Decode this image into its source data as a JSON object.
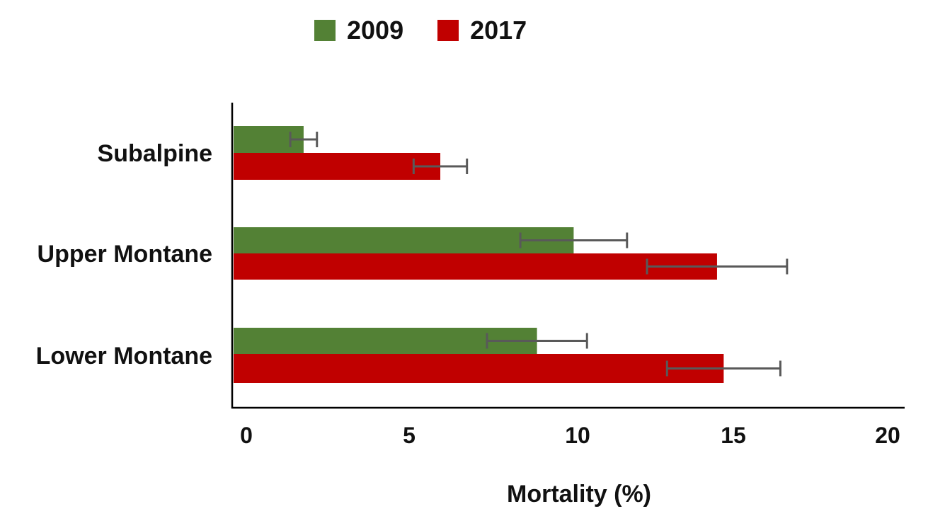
{
  "chart_data": {
    "type": "bar",
    "orientation": "horizontal",
    "categories": [
      "Subalpine",
      "Upper Montane",
      "Lower Montane"
    ],
    "series": [
      {
        "name": "2009",
        "color": "#538135",
        "values": [
          2.1,
          10.2,
          9.1
        ],
        "error": [
          0.4,
          1.6,
          1.5
        ]
      },
      {
        "name": "2017",
        "color": "#c00000",
        "values": [
          6.2,
          14.5,
          14.7
        ],
        "error": [
          0.8,
          2.1,
          1.7
        ]
      }
    ],
    "xlabel": "Mortality (%)",
    "ylabel": "",
    "xlim": [
      0,
      20
    ],
    "xticks": [
      "0",
      "5",
      "10",
      "15",
      "20"
    ],
    "grid": false,
    "legend": "top-center",
    "error_bar_color": "#595959"
  }
}
